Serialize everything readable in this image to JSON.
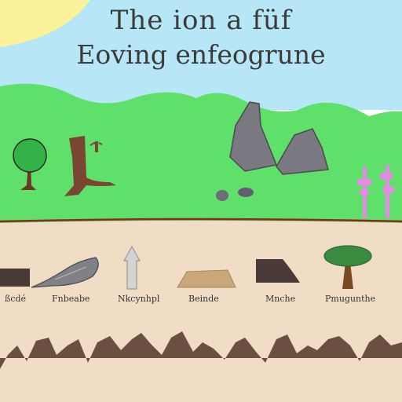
{
  "title_line1": "The ion a füf",
  "title_line2": "Eoving enfeogrune",
  "labels": [
    "ßcdé",
    "Fnbeabe",
    "Nkcynhpl",
    "Beinde",
    "Mnche",
    "Pmugunthe"
  ],
  "colors": {
    "sky": "#b7e7f7",
    "sun": "#fbf29a",
    "hills": "#5fe06b",
    "ground": "#f1dcc6",
    "soil": "#6b5042",
    "rock": "#7a7880",
    "pink": "#e58be5"
  }
}
